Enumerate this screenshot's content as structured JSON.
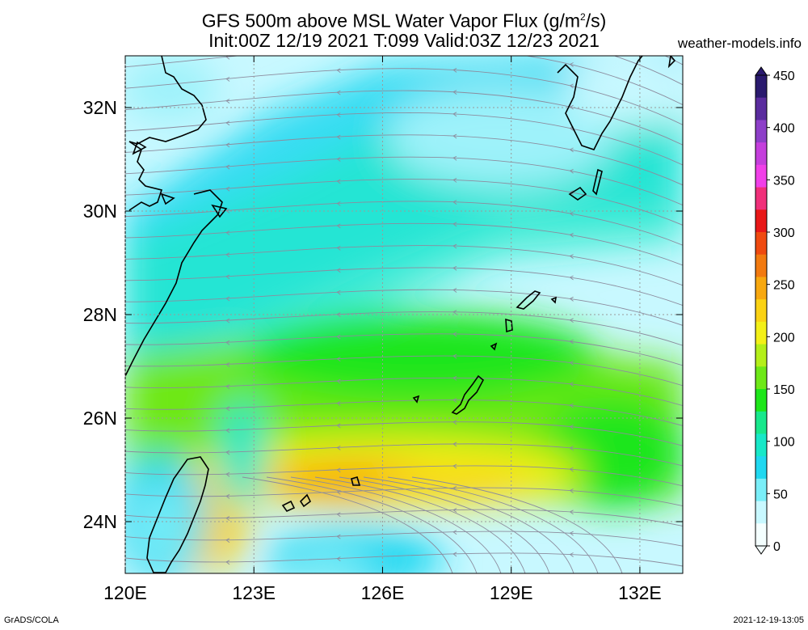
{
  "header": {
    "title_line1_prefix": "GFS 500m above MSL Water Vapor Flux (g/m",
    "title_line1_sup": "2",
    "title_line1_suffix": "/s)",
    "title_line2": "Init:00Z 12/19 2021 T:099 Valid:03Z 12/23 2021",
    "site": "weather-models.info"
  },
  "map": {
    "lon_range": [
      120,
      133
    ],
    "lat_range": [
      23,
      33
    ],
    "x_ticks": [
      {
        "value": 120,
        "label": "120E"
      },
      {
        "value": 123,
        "label": "123E"
      },
      {
        "value": 126,
        "label": "126E"
      },
      {
        "value": 129,
        "label": "129E"
      },
      {
        "value": 132,
        "label": "132E"
      }
    ],
    "y_ticks": [
      {
        "value": 24,
        "label": "24N"
      },
      {
        "value": 26,
        "label": "26N"
      },
      {
        "value": 28,
        "label": "28N"
      },
      {
        "value": 30,
        "label": "30N"
      },
      {
        "value": 32,
        "label": "32N"
      }
    ],
    "grid": "dotted",
    "streamline_color": "#8c8c9e",
    "coast_color": "#000000"
  },
  "colorbar": {
    "ticks": [
      "450",
      "400",
      "350",
      "300",
      "250",
      "200",
      "150",
      "100",
      "50",
      "0"
    ],
    "colors": [
      "#2a1a6e",
      "#5a2c9e",
      "#8d3fc8",
      "#c43fdc",
      "#f040e8",
      "#f0307a",
      "#e81818",
      "#ef4a10",
      "#f27a10",
      "#f7a810",
      "#fad214",
      "#f3f018",
      "#b4ef1a",
      "#6ee818",
      "#1ee61a",
      "#18e88c",
      "#18e8c8",
      "#20d8f0",
      "#7aeef8",
      "#c8f8ff",
      "#f4ffff"
    ]
  },
  "footer": {
    "left": "GrADS/COLA",
    "right": "2021-12-19-13:05"
  }
}
